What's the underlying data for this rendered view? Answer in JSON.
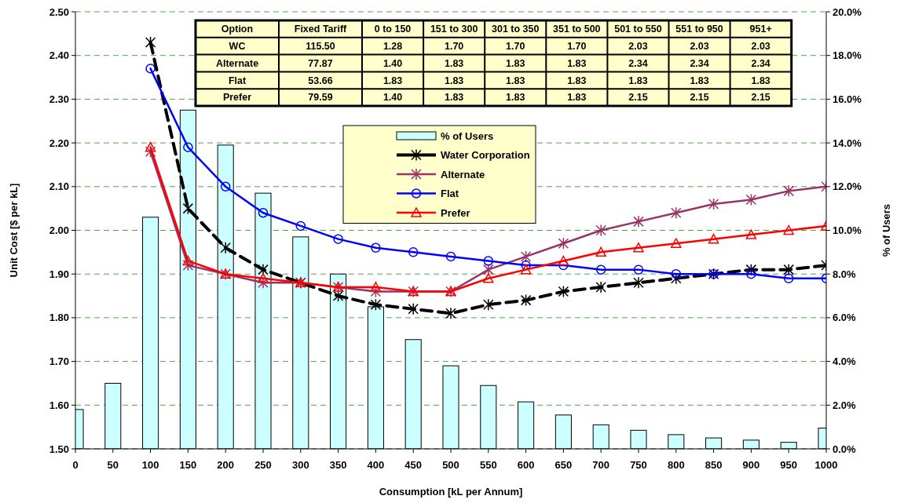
{
  "chart_data": [
    {
      "type": "line",
      "xlabel": "Consumption [kL per Annum]",
      "ylabel": "Unit Cost [$ per kL]",
      "y2label": "% of Users",
      "x": [
        0,
        50,
        100,
        150,
        200,
        250,
        300,
        350,
        400,
        450,
        500,
        550,
        600,
        650,
        700,
        750,
        800,
        850,
        900,
        950,
        1000
      ],
      "xlim": [
        0,
        1000
      ],
      "xticks": [
        0,
        50,
        100,
        150,
        200,
        250,
        300,
        350,
        400,
        450,
        500,
        550,
        600,
        650,
        700,
        750,
        800,
        850,
        900,
        950,
        1000
      ],
      "ylim": [
        1.5,
        2.5
      ],
      "yticks": [
        {
          "value": 1.5,
          "label": "1.50"
        },
        {
          "value": 1.6,
          "label": "1.60"
        },
        {
          "value": 1.7,
          "label": "1.70"
        },
        {
          "value": 1.8,
          "label": "1.80"
        },
        {
          "value": 1.9,
          "label": "1.90"
        },
        {
          "value": 2.0,
          "label": "2.00"
        },
        {
          "value": 2.1,
          "label": "2.10"
        },
        {
          "value": 2.2,
          "label": "2.20"
        },
        {
          "value": 2.3,
          "label": "2.30"
        },
        {
          "value": 2.4,
          "label": "2.40"
        },
        {
          "value": 2.5,
          "label": "2.50"
        }
      ],
      "y2lim": [
        0,
        20
      ],
      "y2ticks": [
        {
          "value": 0,
          "label": "0.0%"
        },
        {
          "value": 2,
          "label": "2.0%"
        },
        {
          "value": 4,
          "label": "4.0%"
        },
        {
          "value": 6,
          "label": "6.0%"
        },
        {
          "value": 8,
          "label": "8.0%"
        },
        {
          "value": 10,
          "label": "10.0%"
        },
        {
          "value": 12,
          "label": "12.0%"
        },
        {
          "value": 14,
          "label": "14.0%"
        },
        {
          "value": 16,
          "label": "16.0%"
        },
        {
          "value": 18,
          "label": "18.0%"
        },
        {
          "value": 20,
          "label": "20.0%"
        }
      ],
      "grid": "y",
      "legend": "top",
      "series": [
        {
          "name": "% of Users",
          "type": "bar",
          "axis": "y2",
          "color": "#ccffff",
          "values": [
            1.8,
            3.0,
            10.6,
            15.5,
            13.9,
            11.7,
            9.7,
            8.0,
            6.5,
            5.0,
            3.8,
            2.9,
            2.15,
            1.55,
            1.1,
            0.85,
            0.65,
            0.5,
            0.4,
            0.3,
            0.95
          ]
        },
        {
          "name": "Water Corporation",
          "type": "line",
          "color": "#000000",
          "line_style": "dashed",
          "marker": "cross",
          "values": [
            null,
            null,
            2.43,
            2.05,
            1.96,
            1.91,
            1.88,
            1.85,
            1.83,
            1.82,
            1.81,
            1.83,
            1.84,
            1.86,
            1.87,
            1.88,
            1.89,
            1.9,
            1.91,
            1.91,
            1.92
          ]
        },
        {
          "name": "Alternate",
          "type": "line",
          "color": "#993366",
          "line_style": "solid",
          "marker": "cross",
          "values": [
            null,
            null,
            2.18,
            1.92,
            1.9,
            1.88,
            1.88,
            1.87,
            1.86,
            1.86,
            1.86,
            1.91,
            1.94,
            1.97,
            2.0,
            2.02,
            2.04,
            2.06,
            2.07,
            2.09,
            2.1
          ]
        },
        {
          "name": "Flat",
          "type": "line",
          "color": "#0000ff",
          "line_style": "solid",
          "marker": "circle",
          "values": [
            null,
            null,
            2.37,
            2.19,
            2.1,
            2.04,
            2.01,
            1.98,
            1.96,
            1.95,
            1.94,
            1.93,
            1.92,
            1.92,
            1.91,
            1.91,
            1.9,
            1.9,
            1.9,
            1.89,
            1.89
          ]
        },
        {
          "name": "Prefer",
          "type": "line",
          "color": "#ff0000",
          "line_style": "solid",
          "marker": "triangle",
          "values": [
            null,
            null,
            2.19,
            1.93,
            1.9,
            1.89,
            1.88,
            1.87,
            1.87,
            1.86,
            1.86,
            1.89,
            1.91,
            1.93,
            1.95,
            1.96,
            1.97,
            1.98,
            1.99,
            2.0,
            2.01
          ]
        }
      ]
    },
    {
      "type": "other",
      "ylabel": "Option",
      "categories": [
        "Fixed Tariff",
        "0 to 150",
        "151 to 300",
        "301 to 350",
        "351 to 500",
        "501 to 550",
        "551 to 950",
        "951+"
      ],
      "y_categories": [
        "WC",
        "Alternate",
        "Flat",
        "Prefer"
      ],
      "cell_labels": [
        [
          "115.50",
          "1.28",
          "1.70",
          "1.70",
          "1.70",
          "2.03",
          "2.03",
          "2.03"
        ],
        [
          "77.87",
          "1.40",
          "1.83",
          "1.83",
          "1.83",
          "2.34",
          "2.34",
          "2.34"
        ],
        [
          "53.66",
          "1.83",
          "1.83",
          "1.83",
          "1.83",
          "1.83",
          "1.83",
          "1.83"
        ],
        [
          "79.59",
          "1.40",
          "1.83",
          "1.83",
          "1.83",
          "2.15",
          "2.15",
          "2.15"
        ]
      ]
    }
  ]
}
